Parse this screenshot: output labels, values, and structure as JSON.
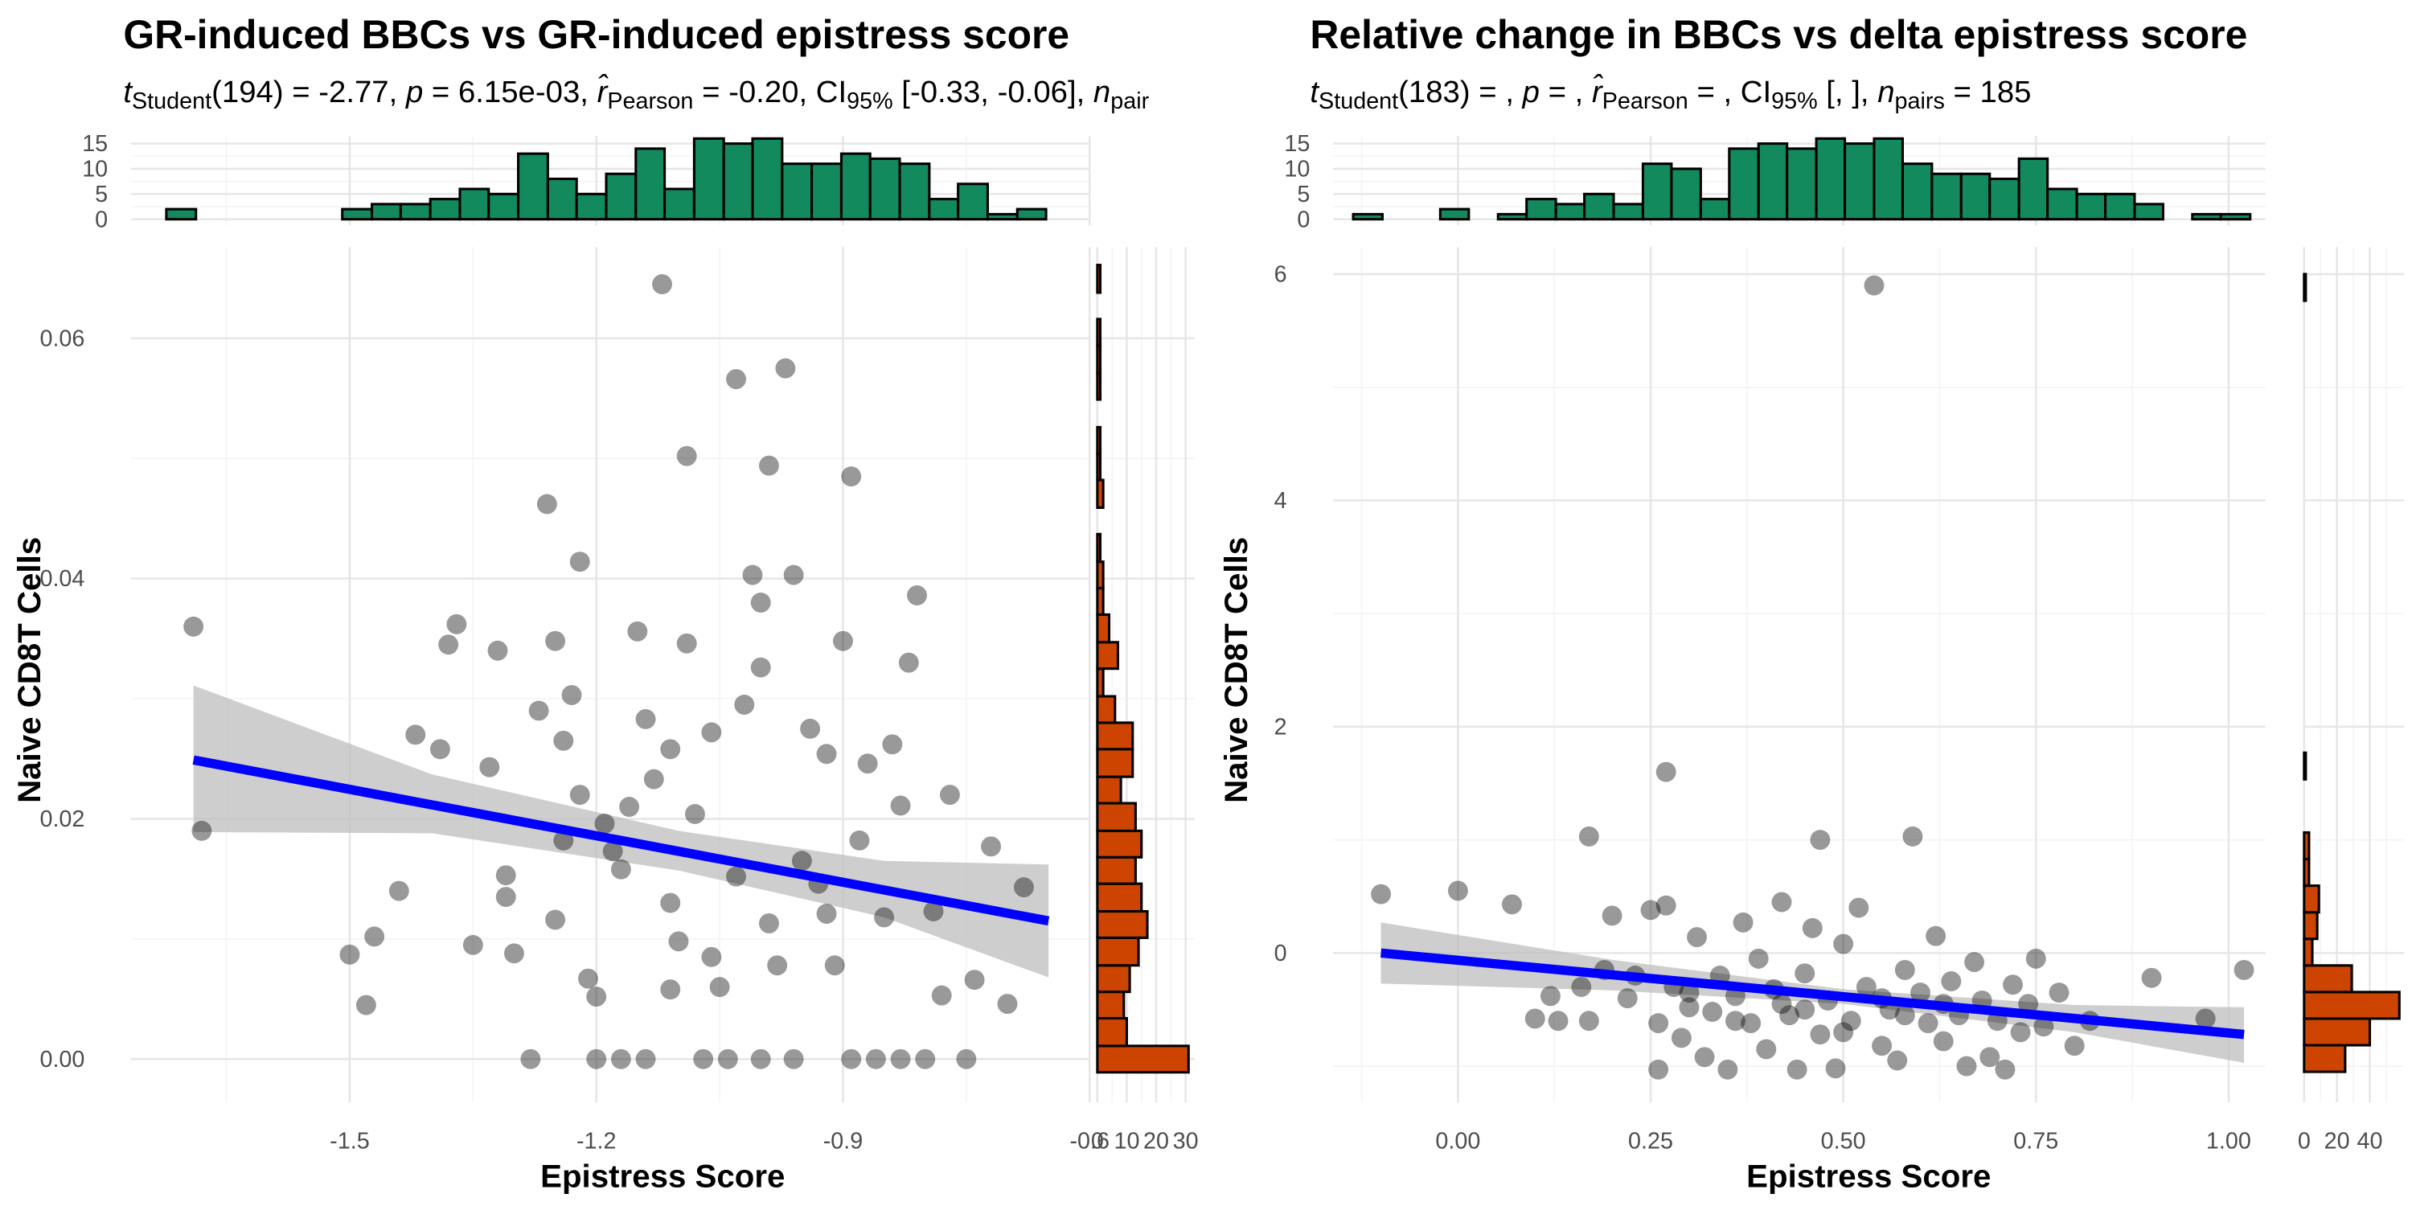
{
  "chart_data": [
    {
      "type": "scatter",
      "title": "GR-induced BBCs vs GR-induced epistress score",
      "subtitle": [
        {
          "text": "t",
          "style": "italic"
        },
        {
          "text": "Student",
          "style": "sub"
        },
        {
          "text": "(194) = -2.77, ",
          "style": "normal"
        },
        {
          "text": "p",
          "style": "italic"
        },
        {
          "text": " = 6.15e-03, ",
          "style": "normal"
        },
        {
          "text": "r̂",
          "style": "italic"
        },
        {
          "text": "Pearson",
          "style": "sub"
        },
        {
          "text": " = -0.20, CI",
          "style": "normal"
        },
        {
          "text": "95%",
          "style": "sub"
        },
        {
          "text": " [-0.33, -0.06], ",
          "style": "normal"
        },
        {
          "text": "n",
          "style": "italic"
        },
        {
          "text": "pair",
          "style": "sub"
        }
      ],
      "x_label": "Epistress Score",
      "y_label": "Naive CD8T Cells",
      "xlim": [
        -1.766,
        -0.6
      ],
      "ylim": [
        -0.0036,
        0.0676
      ],
      "xticks": [
        -1.5,
        -1.2,
        -0.9,
        -0.6
      ],
      "yticks": [
        {
          "value": 0,
          "label": "0.00"
        },
        {
          "value": 0.02,
          "label": "0.02"
        },
        {
          "value": 0.04,
          "label": "0.04"
        },
        {
          "value": 0.06,
          "label": "0.06"
        }
      ],
      "grid": true,
      "point_color": "#000000",
      "line_color": "#0000ff",
      "band_color": "#bebebe",
      "x": [
        -1.69,
        -1.68,
        -1.5,
        -1.48,
        -1.47,
        -1.44,
        -1.42,
        -1.39,
        -1.38,
        -1.37,
        -1.35,
        -1.33,
        -1.32,
        -1.31,
        -1.31,
        -1.3,
        -1.28,
        -1.27,
        -1.26,
        -1.25,
        -1.25,
        -1.24,
        -1.24,
        -1.23,
        -1.22,
        -1.22,
        -1.21,
        -1.2,
        -1.2,
        -1.19,
        -1.18,
        -1.17,
        -1.17,
        -1.16,
        -1.15,
        -1.14,
        -1.13,
        -1.12,
        -1.11,
        -1.11,
        -1.11,
        -1.1,
        -1.09,
        -1.09,
        -1.08,
        -1.07,
        -1.06,
        -1.05,
        -1.04,
        -1.03,
        -1.02,
        -1.01,
        -1.0,
        -1.0,
        -0.99,
        -0.99,
        -0.98,
        -0.97,
        -0.96,
        -0.96,
        -0.94,
        -0.93,
        -0.92,
        -0.91,
        -0.9,
        -0.89,
        -0.89,
        -0.88,
        -0.87,
        -0.86,
        -0.85,
        -0.84,
        -0.83,
        -0.82,
        -0.81,
        -0.8,
        -0.79,
        -0.78,
        -0.77,
        -0.75,
        -0.74,
        -0.72,
        -0.7,
        -0.68,
        -1.14,
        -1.0,
        -0.83,
        -0.95,
        -1.03,
        -0.92,
        -1.06
      ],
      "y": [
        0.036,
        0.019,
        0.0087,
        0.0045,
        0.0102,
        0.014,
        0.027,
        0.0258,
        0.0345,
        0.0362,
        0.0095,
        0.0243,
        0.034,
        0.0135,
        0.0153,
        0.0088,
        0.0,
        0.029,
        0.0462,
        0.0116,
        0.0348,
        0.0265,
        0.0182,
        0.0303,
        0.0414,
        0.022,
        0.0067,
        0.0052,
        0.0,
        0.0196,
        0.0173,
        0.0158,
        0.0,
        0.021,
        0.0356,
        0.0283,
        0.0233,
        0.0645,
        0.0258,
        0.013,
        0.0058,
        0.0098,
        0.0502,
        0.0346,
        0.0204,
        0.0,
        0.0272,
        0.006,
        0.0,
        0.0566,
        0.0295,
        0.0403,
        0.038,
        0.0326,
        0.0494,
        0.0113,
        0.0078,
        0.0575,
        0.0403,
        0.0,
        0.0275,
        0.0146,
        0.0254,
        0.0078,
        0.0348,
        0.0485,
        0.0,
        0.0182,
        0.0246,
        0.0,
        0.0118,
        0.0262,
        0.0211,
        0.033,
        0.0386,
        0.0,
        0.0123,
        0.0053,
        0.022,
        0.0,
        0.0066,
        0.0177,
        0.0046,
        0.0143,
        0.0,
        0.0,
        0.0,
        0.0165,
        0.0152,
        0.0121,
        0.0085
      ],
      "fit": {
        "x": [
          -1.69,
          -0.65
        ],
        "y": [
          0.0249,
          0.0115
        ]
      },
      "ci": {
        "x": [
          -1.69,
          -1.4,
          -1.1,
          -0.85,
          -0.65
        ],
        "lower": [
          0.0189,
          0.0188,
          0.0157,
          0.0118,
          0.0068
        ],
        "upper": [
          0.0311,
          0.0237,
          0.019,
          0.0165,
          0.0162
        ]
      },
      "marginal_x": {
        "type": "histogram",
        "color": "#138a5d",
        "bins": [
          -1.723,
          -1.687,
          -1.652,
          -1.616,
          -1.58,
          -1.545,
          -1.509,
          -1.473,
          -1.438,
          -1.402,
          -1.366,
          -1.331,
          -1.295,
          -1.259,
          -1.224,
          -1.188,
          -1.152,
          -1.117,
          -1.081,
          -1.045,
          -1.01,
          -0.974,
          -0.938,
          -0.902,
          -0.867,
          -0.831,
          -0.795,
          -0.76,
          -0.724,
          -0.688,
          -0.653
        ],
        "counts": [
          2,
          0,
          0,
          0,
          0,
          0,
          2,
          3,
          3,
          4,
          6,
          5,
          13,
          8,
          5,
          9,
          14,
          6,
          16,
          15,
          16,
          11,
          11,
          13,
          12,
          11,
          4,
          7,
          1,
          2
        ],
        "ylim": [
          0,
          16.5
        ],
        "yticks": [
          0,
          5,
          10,
          15
        ]
      },
      "marginal_y": {
        "type": "histogram",
        "color": "#cc4400",
        "bins": [
          -0.0011,
          0.0011,
          0.0034,
          0.0056,
          0.0078,
          0.0101,
          0.0123,
          0.0146,
          0.0168,
          0.019,
          0.0213,
          0.0235,
          0.0258,
          0.028,
          0.0302,
          0.0325,
          0.0347,
          0.037,
          0.0392,
          0.0414,
          0.0437,
          0.0459,
          0.0482,
          0.0504,
          0.0526,
          0.0549,
          0.0571,
          0.0594,
          0.0616,
          0.0638,
          0.0661
        ],
        "counts": [
          31,
          10,
          9,
          11,
          14,
          17,
          15,
          13,
          15,
          13,
          8,
          12,
          12,
          6,
          2,
          7,
          4,
          2,
          2,
          1,
          0,
          2,
          1,
          1,
          0,
          1,
          1,
          1,
          0,
          1
        ],
        "xlim": [
          0,
          33
        ],
        "xticks": [
          0,
          10,
          20,
          30
        ]
      }
    },
    {
      "type": "scatter",
      "title": "Relative change in BBCs vs delta epistress score",
      "subtitle": [
        {
          "text": "t",
          "style": "italic"
        },
        {
          "text": "Student",
          "style": "sub"
        },
        {
          "text": "(183) = , ",
          "style": "normal"
        },
        {
          "text": "p",
          "style": "italic"
        },
        {
          "text": " = , ",
          "style": "normal"
        },
        {
          "text": "r̂",
          "style": "italic"
        },
        {
          "text": "Pearson",
          "style": "sub"
        },
        {
          "text": " = , CI",
          "style": "normal"
        },
        {
          "text": "95%",
          "style": "sub"
        },
        {
          "text": " [, ], ",
          "style": "normal"
        },
        {
          "text": "n",
          "style": "italic"
        },
        {
          "text": "pairs",
          "style": "sub"
        },
        {
          "text": " = 185",
          "style": "normal"
        }
      ],
      "x_label": "Epistress Score",
      "y_label": "Naive CD8T Cells",
      "xlim": [
        -0.162,
        1.048
      ],
      "ylim": [
        -1.32,
        6.24
      ],
      "xticks": [
        {
          "value": 0,
          "label": "0.00"
        },
        {
          "value": 0.25,
          "label": "0.25"
        },
        {
          "value": 0.5,
          "label": "0.50"
        },
        {
          "value": 0.75,
          "label": "0.75"
        },
        {
          "value": 1,
          "label": "1.00"
        }
      ],
      "yticks": [
        0,
        2,
        4,
        6
      ],
      "grid": true,
      "point_color": "#000000",
      "line_color": "#0000ff",
      "band_color": "#bebebe",
      "x": [
        -0.1,
        0.0,
        0.07,
        0.1,
        0.12,
        0.13,
        0.16,
        0.17,
        0.17,
        0.19,
        0.2,
        0.22,
        0.23,
        0.25,
        0.26,
        0.26,
        0.27,
        0.27,
        0.28,
        0.29,
        0.3,
        0.31,
        0.32,
        0.33,
        0.34,
        0.35,
        0.36,
        0.37,
        0.38,
        0.39,
        0.4,
        0.41,
        0.42,
        0.43,
        0.44,
        0.45,
        0.46,
        0.47,
        0.47,
        0.48,
        0.49,
        0.5,
        0.51,
        0.52,
        0.53,
        0.54,
        0.55,
        0.56,
        0.57,
        0.58,
        0.59,
        0.6,
        0.61,
        0.62,
        0.63,
        0.64,
        0.65,
        0.66,
        0.67,
        0.68,
        0.69,
        0.7,
        0.71,
        0.72,
        0.73,
        0.74,
        0.75,
        0.76,
        0.78,
        0.8,
        0.82,
        0.9,
        0.97,
        1.02,
        0.42,
        0.5,
        0.36,
        0.55,
        0.63,
        0.3,
        0.45,
        0.58
      ],
      "y": [
        0.52,
        0.55,
        0.43,
        -0.58,
        -0.38,
        -0.6,
        -0.3,
        1.03,
        -0.6,
        -0.15,
        0.33,
        -0.4,
        -0.2,
        0.38,
        -1.03,
        -0.62,
        0.42,
        1.6,
        -0.3,
        -0.75,
        -0.48,
        0.14,
        -0.92,
        -0.52,
        -0.2,
        -1.03,
        -0.38,
        0.27,
        -0.62,
        -0.05,
        -0.85,
        -0.32,
        0.45,
        -0.55,
        -1.03,
        -0.18,
        0.22,
        -0.72,
        1.0,
        -0.42,
        -1.02,
        0.08,
        -0.6,
        0.4,
        -0.3,
        5.9,
        -0.82,
        -0.5,
        -0.95,
        -0.15,
        1.03,
        -0.35,
        -0.62,
        0.15,
        -0.78,
        -0.25,
        -0.55,
        -1.0,
        -0.08,
        -0.42,
        -0.92,
        -0.6,
        -1.03,
        -0.28,
        -0.7,
        -0.45,
        -0.05,
        -0.65,
        -0.35,
        -0.82,
        -0.6,
        -0.22,
        -0.58,
        -0.15,
        -0.45,
        -0.7,
        -0.6,
        -0.4,
        -0.45,
        -0.35,
        -0.5,
        -0.55
      ],
      "fit": {
        "x": [
          -0.1,
          1.02
        ],
        "y": [
          0.0,
          -0.72
        ]
      },
      "ci": {
        "x": [
          -0.1,
          0.2,
          0.5,
          0.8,
          1.02
        ],
        "lower": [
          -0.27,
          -0.33,
          -0.45,
          -0.7,
          -0.97
        ],
        "upper": [
          0.27,
          -0.06,
          -0.32,
          -0.46,
          -0.48
        ]
      },
      "marginal_x": {
        "type": "histogram",
        "color": "#138a5d",
        "bins": [
          -0.136,
          -0.098,
          -0.061,
          -0.023,
          0.014,
          0.052,
          0.089,
          0.127,
          0.164,
          0.202,
          0.24,
          0.277,
          0.315,
          0.352,
          0.39,
          0.427,
          0.465,
          0.502,
          0.54,
          0.577,
          0.615,
          0.653,
          0.69,
          0.728,
          0.765,
          0.803,
          0.84,
          0.878,
          0.915,
          0.953,
          0.99,
          1.028
        ],
        "counts": [
          1,
          0,
          0,
          2,
          0,
          1,
          4,
          3,
          5,
          3,
          11,
          10,
          4,
          14,
          15,
          14,
          16,
          15,
          16,
          11,
          9,
          9,
          8,
          12,
          6,
          5,
          5,
          3,
          0,
          1,
          1
        ],
        "ylim": [
          0,
          16.5
        ],
        "yticks": [
          0,
          5,
          10,
          15
        ]
      },
      "marginal_y": {
        "type": "histogram",
        "color": "#cc4400",
        "bins": [
          -1.05,
          -0.815,
          -0.58,
          -0.345,
          -0.11,
          0.125,
          0.36,
          0.595,
          0.83,
          1.065,
          1.3,
          1.535,
          1.77,
          2.005,
          2.24,
          2.475,
          2.71,
          2.945,
          3.18,
          3.415,
          3.65,
          3.885,
          4.12,
          4.355,
          4.59,
          4.825,
          5.06,
          5.295,
          5.53,
          5.765,
          6.0
        ],
        "counts": [
          25,
          40,
          58,
          29,
          5,
          8,
          9,
          3,
          3,
          0,
          0,
          1,
          0,
          0,
          0,
          0,
          0,
          0,
          0,
          0,
          0,
          0,
          0,
          0,
          0,
          0,
          0,
          0,
          0,
          1
        ],
        "xlim": [
          0,
          61
        ],
        "xticks": [
          0,
          20,
          40
        ]
      }
    }
  ]
}
